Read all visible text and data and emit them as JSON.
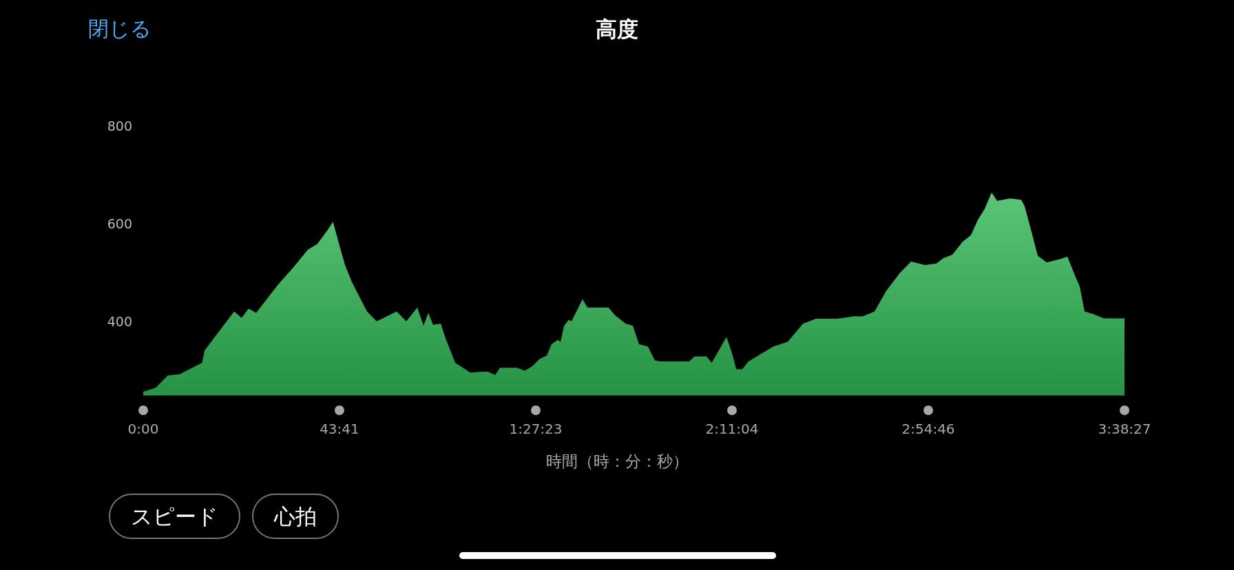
{
  "chart_data": {
    "type": "area",
    "title": "高度",
    "xlabel": "時間（時：分：秒）",
    "annotations": [
      "閉じる",
      "スピード",
      "心拍"
    ],
    "xlim": [
      0,
      13107
    ],
    "xticks": [
      {
        "value": 0,
        "label": "0:00"
      },
      {
        "value": 2621,
        "label": "43:41"
      },
      {
        "value": 5243,
        "label": "1:27:23"
      },
      {
        "value": 7864,
        "label": "2:11:04"
      },
      {
        "value": 10486,
        "label": "2:54:46"
      },
      {
        "value": 13107,
        "label": "3:38:27"
      }
    ],
    "ylim": [
      250,
      800
    ],
    "yticks": [
      400,
      600,
      800
    ],
    "grid": false,
    "legend": false,
    "marker": "none",
    "series": [
      {
        "color": "#2db352",
        "x": [
          0,
          166,
          327,
          488,
          787,
          819,
          1214,
          1315,
          1407,
          1508,
          1803,
          2005,
          2198,
          2327,
          2465,
          2535,
          2612,
          2695,
          2787,
          2989,
          3118,
          3385,
          3514,
          3661,
          3744,
          3808,
          3872,
          3974,
          4038,
          4167,
          4369,
          4525,
          4605,
          4700,
          4765,
          4995,
          5096,
          5197,
          5294,
          5390,
          5454,
          5537,
          5574,
          5620,
          5684,
          5721,
          5786,
          5868,
          5933,
          6214,
          6297,
          6444,
          6540,
          6622,
          6742,
          6834,
          6904,
          7294,
          7364,
          7524,
          7594,
          7791,
          7874,
          7920,
          8002,
          8085,
          8214,
          8416,
          8609,
          8812,
          8986,
          9272,
          9492,
          9612,
          9768,
          9925,
          10109,
          10256,
          10440,
          10596,
          10688,
          10808,
          10942,
          11056,
          11148,
          11240,
          11332,
          11406,
          11580,
          11727,
          11773,
          11856,
          11948,
          12068,
          12252,
          12344,
          12436,
          12509,
          12574,
          12684,
          12831,
          13107
        ],
        "values": [
          257,
          265,
          290,
          293,
          316,
          341,
          421,
          408,
          427,
          418,
          476,
          511,
          547,
          559,
          588,
          604,
          561,
          516,
          481,
          421,
          401,
          421,
          401,
          429,
          392,
          418,
          394,
          396,
          366,
          316,
          296,
          298,
          298,
          291,
          306,
          306,
          300,
          309,
          324,
          331,
          354,
          363,
          359,
          391,
          404,
          401,
          421,
          446,
          429,
          429,
          414,
          396,
          392,
          354,
          349,
          321,
          319,
          319,
          329,
          329,
          316,
          369,
          331,
          303,
          303,
          319,
          331,
          349,
          359,
          396,
          406,
          406,
          411,
          411,
          421,
          463,
          500,
          523,
          516,
          519,
          530,
          537,
          563,
          577,
          608,
          631,
          664,
          647,
          652,
          649,
          636,
          589,
          535,
          521,
          528,
          533,
          498,
          472,
          421,
          416,
          407,
          407
        ]
      }
    ]
  }
}
